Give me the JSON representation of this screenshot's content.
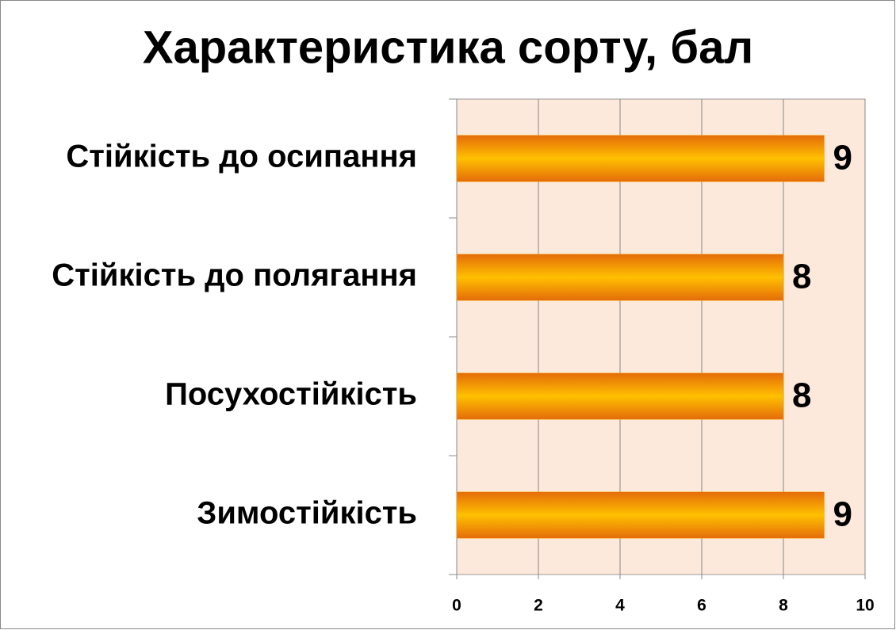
{
  "chart_data": {
    "type": "bar",
    "orientation": "horizontal",
    "title": "Характеристика сорту, бал",
    "categories": [
      "Стійкість до осипання",
      "Стійкість до полягання",
      "Посухостійкість",
      "Зимостійкість"
    ],
    "values": [
      9,
      8,
      8,
      9
    ],
    "color": "#f5a300",
    "xlim": [
      0,
      10
    ],
    "xticks": [
      0,
      2,
      4,
      6,
      8,
      10
    ],
    "grid": true
  }
}
